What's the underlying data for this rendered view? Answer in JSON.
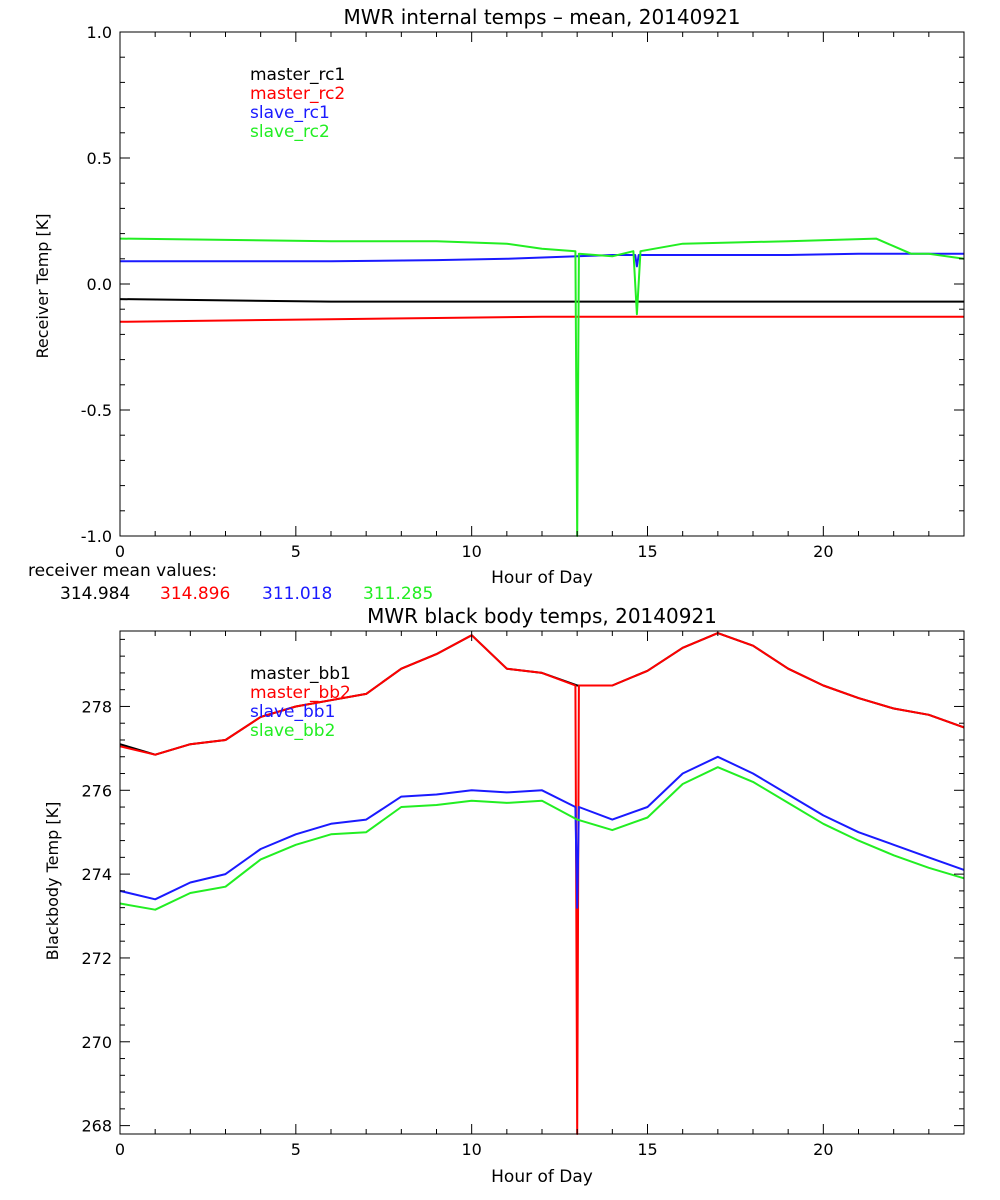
{
  "colors": {
    "black": "#000000",
    "red": "#ff0000",
    "blue": "#1a1aff",
    "green": "#22ee22"
  },
  "chart_data": [
    {
      "type": "line",
      "title": "MWR internal temps – mean, 20140921",
      "xlabel": "Hour of Day",
      "ylabel": "Receiver Temp [K]",
      "xlim": [
        0,
        24
      ],
      "ylim": [
        -1.0,
        1.0
      ],
      "x_ticks": [
        0,
        5,
        10,
        15,
        20
      ],
      "x_tick_labels": [
        "0",
        "5",
        "10",
        "15",
        "20"
      ],
      "y_ticks": [
        -1.0,
        -0.5,
        0.0,
        0.5,
        1.0
      ],
      "y_tick_labels": [
        "-1.0",
        "-0.5",
        "0.0",
        "0.5",
        "1.0"
      ],
      "grid": false,
      "legend_placement": "upper-left",
      "series": [
        {
          "name": "master_rc1",
          "color": "#000000",
          "x": [
            0,
            3,
            6,
            9,
            12,
            15,
            18,
            21,
            24
          ],
          "y": [
            -0.06,
            -0.065,
            -0.07,
            -0.07,
            -0.07,
            -0.07,
            -0.07,
            -0.07,
            -0.07
          ]
        },
        {
          "name": "master_rc2",
          "color": "#ff0000",
          "x": [
            0,
            3,
            6,
            9,
            12,
            15,
            18,
            21,
            24
          ],
          "y": [
            -0.15,
            -0.145,
            -0.14,
            -0.135,
            -0.13,
            -0.13,
            -0.13,
            -0.13,
            -0.13
          ]
        },
        {
          "name": "slave_rc1",
          "color": "#1a1aff",
          "x": [
            0,
            3,
            6,
            9,
            11,
            13,
            14,
            14.65,
            14.7,
            14.75,
            16,
            19,
            21,
            22,
            24
          ],
          "y": [
            0.09,
            0.09,
            0.09,
            0.095,
            0.1,
            0.11,
            0.115,
            0.115,
            0.07,
            0.115,
            0.115,
            0.115,
            0.12,
            0.12,
            0.12
          ]
        },
        {
          "name": "slave_rc2",
          "color": "#22ee22",
          "x": [
            0,
            3,
            6,
            9,
            11,
            12,
            12.95,
            13.0,
            13.05,
            14,
            14.6,
            14.7,
            14.8,
            16,
            19,
            21.5,
            22,
            22.5,
            23,
            24
          ],
          "y": [
            0.18,
            0.175,
            0.17,
            0.17,
            0.16,
            0.14,
            0.13,
            -1.0,
            0.12,
            0.11,
            0.13,
            -0.12,
            0.13,
            0.16,
            0.17,
            0.18,
            0.15,
            0.12,
            0.12,
            0.1
          ]
        }
      ],
      "annotation": {
        "label": "receiver mean values:",
        "values": [
          "314.984",
          "314.896",
          "311.018",
          "311.285"
        ],
        "value_colors": [
          "#000000",
          "#ff0000",
          "#1a1aff",
          "#22ee22"
        ]
      }
    },
    {
      "type": "line",
      "title": "MWR black body temps, 20140921",
      "xlabel": "Hour of Day",
      "ylabel": "Blackbody Temp [K]",
      "xlim": [
        0,
        24
      ],
      "ylim": [
        267.8,
        279.8
      ],
      "x_ticks": [
        0,
        5,
        10,
        15,
        20
      ],
      "x_tick_labels": [
        "0",
        "5",
        "10",
        "15",
        "20"
      ],
      "y_ticks": [
        268,
        270,
        272,
        274,
        276,
        278
      ],
      "y_tick_labels": [
        "268",
        "270",
        "272",
        "274",
        "276",
        "278"
      ],
      "grid": false,
      "legend_placement": "upper-left",
      "series": [
        {
          "name": "master_bb1",
          "color": "#000000",
          "x": [
            0,
            1,
            2,
            3,
            4,
            5,
            6,
            7,
            8,
            9,
            10,
            11,
            12,
            13,
            14,
            15,
            16,
            17,
            18,
            19,
            20,
            21,
            22,
            23,
            24
          ],
          "y": [
            277.1,
            276.85,
            277.1,
            277.2,
            277.75,
            278.0,
            278.15,
            278.3,
            278.9,
            279.25,
            279.7,
            278.9,
            278.8,
            278.5,
            278.5,
            278.85,
            279.4,
            279.75,
            279.45,
            278.9,
            278.5,
            278.2,
            277.95,
            277.8,
            277.5
          ]
        },
        {
          "name": "master_bb2",
          "color": "#ff0000",
          "x": [
            0,
            1,
            2,
            3,
            4,
            5,
            6,
            7,
            8,
            9,
            10,
            11,
            12,
            12.95,
            13.0,
            13.05,
            14,
            15,
            16,
            17,
            18,
            19,
            20,
            21,
            22,
            23,
            24
          ],
          "y": [
            277.05,
            276.85,
            277.1,
            277.2,
            277.75,
            278.0,
            278.15,
            278.3,
            278.9,
            279.25,
            279.7,
            278.9,
            278.8,
            278.5,
            267.8,
            278.5,
            278.5,
            278.85,
            279.4,
            279.75,
            279.45,
            278.9,
            278.5,
            278.2,
            277.95,
            277.8,
            277.5
          ]
        },
        {
          "name": "slave_bb1",
          "color": "#1a1aff",
          "x": [
            0,
            1,
            2,
            3,
            4,
            5,
            6,
            7,
            8,
            9,
            10,
            11,
            12,
            12.95,
            13.0,
            13.05,
            14,
            15,
            16,
            17,
            18,
            19,
            20,
            21,
            22,
            23,
            24
          ],
          "y": [
            273.6,
            273.4,
            273.8,
            274.0,
            274.6,
            274.95,
            275.2,
            275.3,
            275.85,
            275.9,
            276.0,
            275.95,
            276.0,
            275.6,
            273.2,
            275.6,
            275.3,
            275.6,
            276.4,
            276.8,
            276.4,
            275.9,
            275.4,
            275.0,
            274.7,
            274.4,
            274.1
          ]
        },
        {
          "name": "slave_bb2",
          "color": "#22ee22",
          "x": [
            0,
            1,
            2,
            3,
            4,
            5,
            6,
            7,
            8,
            9,
            10,
            11,
            12,
            13,
            14,
            15,
            16,
            17,
            18,
            19,
            20,
            21,
            22,
            23,
            24
          ],
          "y": [
            273.3,
            273.15,
            273.55,
            273.7,
            274.35,
            274.7,
            274.95,
            275.0,
            275.6,
            275.65,
            275.75,
            275.7,
            275.75,
            275.3,
            275.05,
            275.35,
            276.15,
            276.55,
            276.2,
            275.7,
            275.2,
            274.8,
            274.45,
            274.15,
            273.9
          ]
        }
      ]
    }
  ]
}
